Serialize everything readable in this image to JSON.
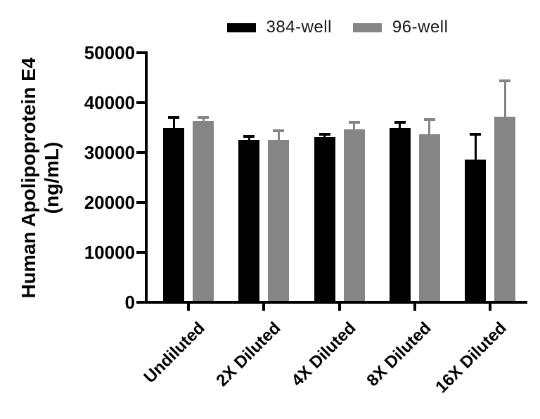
{
  "figure": {
    "background": "#ffffff",
    "y_axis_title_line1": "Human Apolipoprotein E4",
    "y_axis_title_line2": "(ng/mL)"
  },
  "legend": {
    "position": "top-center",
    "items": [
      {
        "label": "384-well",
        "color": "#000000"
      },
      {
        "label": "96-well",
        "color": "#858585"
      }
    ]
  },
  "chart_data": {
    "type": "bar",
    "title": "",
    "xlabel": "",
    "ylabel": "Human Apolipoprotein E4 (ng/mL)",
    "ylim": [
      0,
      50000
    ],
    "yticks": [
      0,
      10000,
      20000,
      30000,
      40000,
      50000
    ],
    "ytick_labels": [
      "0",
      "10000",
      "20000",
      "30000",
      "40000",
      "50000"
    ],
    "grid": false,
    "legend_position": "top",
    "error_bars": "upper-only-with-caps",
    "categories": [
      "Undiluted",
      "2X Diluted",
      "4X Diluted",
      "8X Diluted",
      "16X Diluted"
    ],
    "series": [
      {
        "name": "384-well",
        "color": "#000000",
        "values": [
          35000,
          32500,
          33100,
          35000,
          28600
        ],
        "errors": [
          2100,
          800,
          600,
          1100,
          5100
        ]
      },
      {
        "name": "96-well",
        "color": "#858585",
        "values": [
          36300,
          32600,
          34600,
          33600,
          37200
        ],
        "errors": [
          800,
          1800,
          1500,
          3000,
          7200
        ]
      }
    ]
  }
}
